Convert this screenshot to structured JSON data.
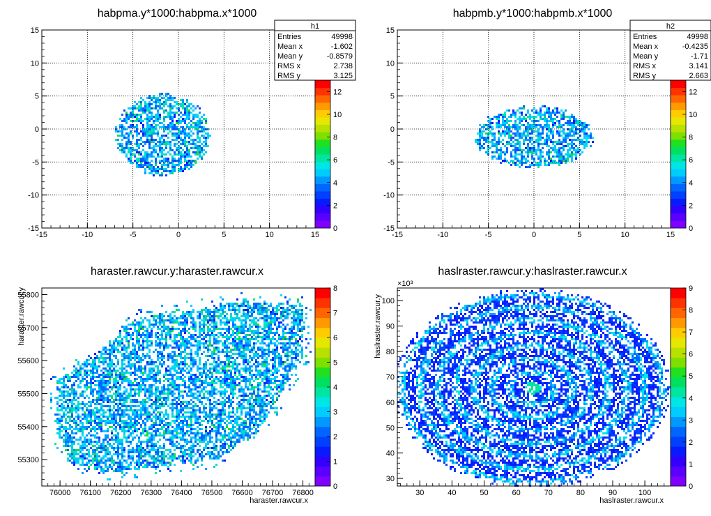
{
  "chart_data": [
    {
      "type": "heatmap",
      "title": "habpma.y*1000:habpma.x*1000",
      "xlabel": "",
      "ylabel": "",
      "xlim": [
        -15,
        15
      ],
      "ylim": [
        -15,
        15
      ],
      "x_ticks": [
        "-15",
        "-10",
        "-5",
        "0",
        "5",
        "10",
        "15"
      ],
      "y_ticks": [
        "-15",
        "-10",
        "-5",
        "0",
        "5",
        "10",
        "15"
      ],
      "z_ticks": [
        "0",
        "2",
        "4",
        "6",
        "8",
        "10",
        "12"
      ],
      "zmax": 13,
      "grid": true,
      "blob": {
        "shape": "ellipse",
        "cx": -1.7,
        "cy": -0.9,
        "rx": 5.0,
        "ry": 6.0,
        "hole": true
      },
      "stats": {
        "name": "h1",
        "rows": [
          {
            "label": "Entries",
            "value": "49998"
          },
          {
            "label": "Mean x",
            "value": "-1.602"
          },
          {
            "label": "Mean y",
            "value": "-0.8579"
          },
          {
            "label": "RMS x",
            "value": "2.738"
          },
          {
            "label": "RMS y",
            "value": "3.125"
          }
        ]
      }
    },
    {
      "type": "heatmap",
      "title": "habpmb.y*1000:habpmb.x*1000",
      "xlabel": "",
      "ylabel": "",
      "xlim": [
        -15,
        15
      ],
      "ylim": [
        -15,
        15
      ],
      "x_ticks": [
        "-15",
        "-10",
        "-5",
        "0",
        "5",
        "10",
        "15"
      ],
      "y_ticks": [
        "-15",
        "-10",
        "-5",
        "0",
        "5",
        "10",
        "15"
      ],
      "z_ticks": [
        "0",
        "2",
        "4",
        "6",
        "8",
        "10",
        "12"
      ],
      "zmax": 13,
      "grid": true,
      "blob": {
        "shape": "ellipse",
        "cx": 0.0,
        "cy": -1.2,
        "rx": 6.3,
        "ry": 4.5,
        "hole": false
      },
      "stats": {
        "name": "h2",
        "rows": [
          {
            "label": "Entries",
            "value": "49998"
          },
          {
            "label": "Mean x",
            "value": "-0.4235"
          },
          {
            "label": "Mean y",
            "value": "-1.71"
          },
          {
            "label": "RMS x",
            "value": "3.141"
          },
          {
            "label": "RMS y",
            "value": "2.663"
          }
        ]
      }
    },
    {
      "type": "heatmap",
      "title": "haraster.rawcur.y:haraster.rawcur.x",
      "xlabel": "haraster.rawcur.x",
      "ylabel": "haraster.rawcur.y",
      "xlim": [
        75940,
        76840
      ],
      "ylim": [
        55220,
        55820
      ],
      "x_ticks": [
        "76000",
        "76100",
        "76200",
        "76300",
        "76400",
        "76500",
        "76600",
        "76700",
        "76800"
      ],
      "y_ticks": [
        "55300",
        "55400",
        "55500",
        "55600",
        "55700",
        "55800"
      ],
      "z_ticks": [
        "0",
        "1",
        "2",
        "3",
        "4",
        "5",
        "6",
        "7",
        "8"
      ],
      "zmax": 8,
      "grid": false,
      "blob": {
        "shape": "polygon",
        "points": [
          [
            76040,
            55290
          ],
          [
            76160,
            55260
          ],
          [
            76520,
            55300
          ],
          [
            76650,
            55380
          ],
          [
            76800,
            55610
          ],
          [
            76800,
            55770
          ],
          [
            76600,
            55780
          ],
          [
            76250,
            55730
          ],
          [
            76120,
            55620
          ],
          [
            75990,
            55540
          ],
          [
            75990,
            55380
          ]
        ]
      }
    },
    {
      "type": "heatmap",
      "title": "haslraster.rawcur.y:haslraster.rawcur.x",
      "xlabel": "haslraster.rawcur.x",
      "ylabel": "haslraster.rawcur.y",
      "xlim": [
        23,
        108
      ],
      "ylim": [
        27,
        105
      ],
      "x_ticks": [
        "30",
        "40",
        "50",
        "60",
        "70",
        "80",
        "90",
        "100"
      ],
      "y_ticks": [
        "30",
        "40",
        "50",
        "60",
        "70",
        "80",
        "90",
        "100"
      ],
      "z_ticks": [
        "0",
        "1",
        "2",
        "3",
        "4",
        "5",
        "6",
        "7",
        "8",
        "9"
      ],
      "zmax": 9,
      "grid": false,
      "axis_multiplier": "×10³",
      "blob": {
        "shape": "ellipse",
        "cx": 65,
        "cy": 65.5,
        "rx": 41,
        "ry": 37.5,
        "hole": false
      }
    }
  ]
}
